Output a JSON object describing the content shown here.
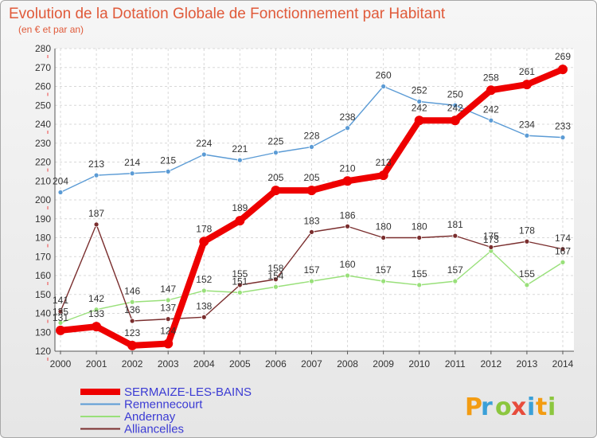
{
  "chart_data": {
    "type": "line",
    "title": "Evolution de la Dotation Globale de Fonctionnement par Habitant",
    "subtitle": "(en € et par an)",
    "x": [
      2000,
      2001,
      2002,
      2003,
      2004,
      2005,
      2006,
      2007,
      2008,
      2009,
      2010,
      2011,
      2012,
      2013,
      2014
    ],
    "ylim": [
      120,
      280
    ],
    "yticks": [
      120,
      130,
      140,
      150,
      160,
      170,
      180,
      190,
      200,
      210,
      220,
      230,
      240,
      250,
      260,
      270,
      280
    ],
    "grid": true,
    "legend_position": "bottom-left",
    "series": [
      {
        "name": "Remennecourt",
        "color": "#5b9bd5",
        "values": [
          204,
          213,
          214,
          215,
          224,
          221,
          225,
          228,
          238,
          260,
          252,
          250,
          242,
          234,
          233
        ]
      },
      {
        "name": "Andernay",
        "color": "#99e07a",
        "values": [
          135,
          142,
          146,
          147,
          152,
          151,
          154,
          157,
          160,
          157,
          155,
          157,
          173,
          155,
          167
        ]
      },
      {
        "name": "Alliancelles",
        "color": "#7a2e2e",
        "values": [
          141,
          187,
          136,
          137,
          138,
          155,
          158,
          183,
          186,
          180,
          180,
          181,
          175,
          178,
          174
        ]
      },
      {
        "name": "SERMAIZE-LES-BAINS",
        "color": "#ee0000",
        "values": [
          131,
          133,
          123,
          124,
          178,
          189,
          205,
          205,
          210,
          213,
          242,
          242,
          258,
          261,
          269
        ]
      }
    ]
  },
  "logo": {
    "text": "Proxiti"
  }
}
